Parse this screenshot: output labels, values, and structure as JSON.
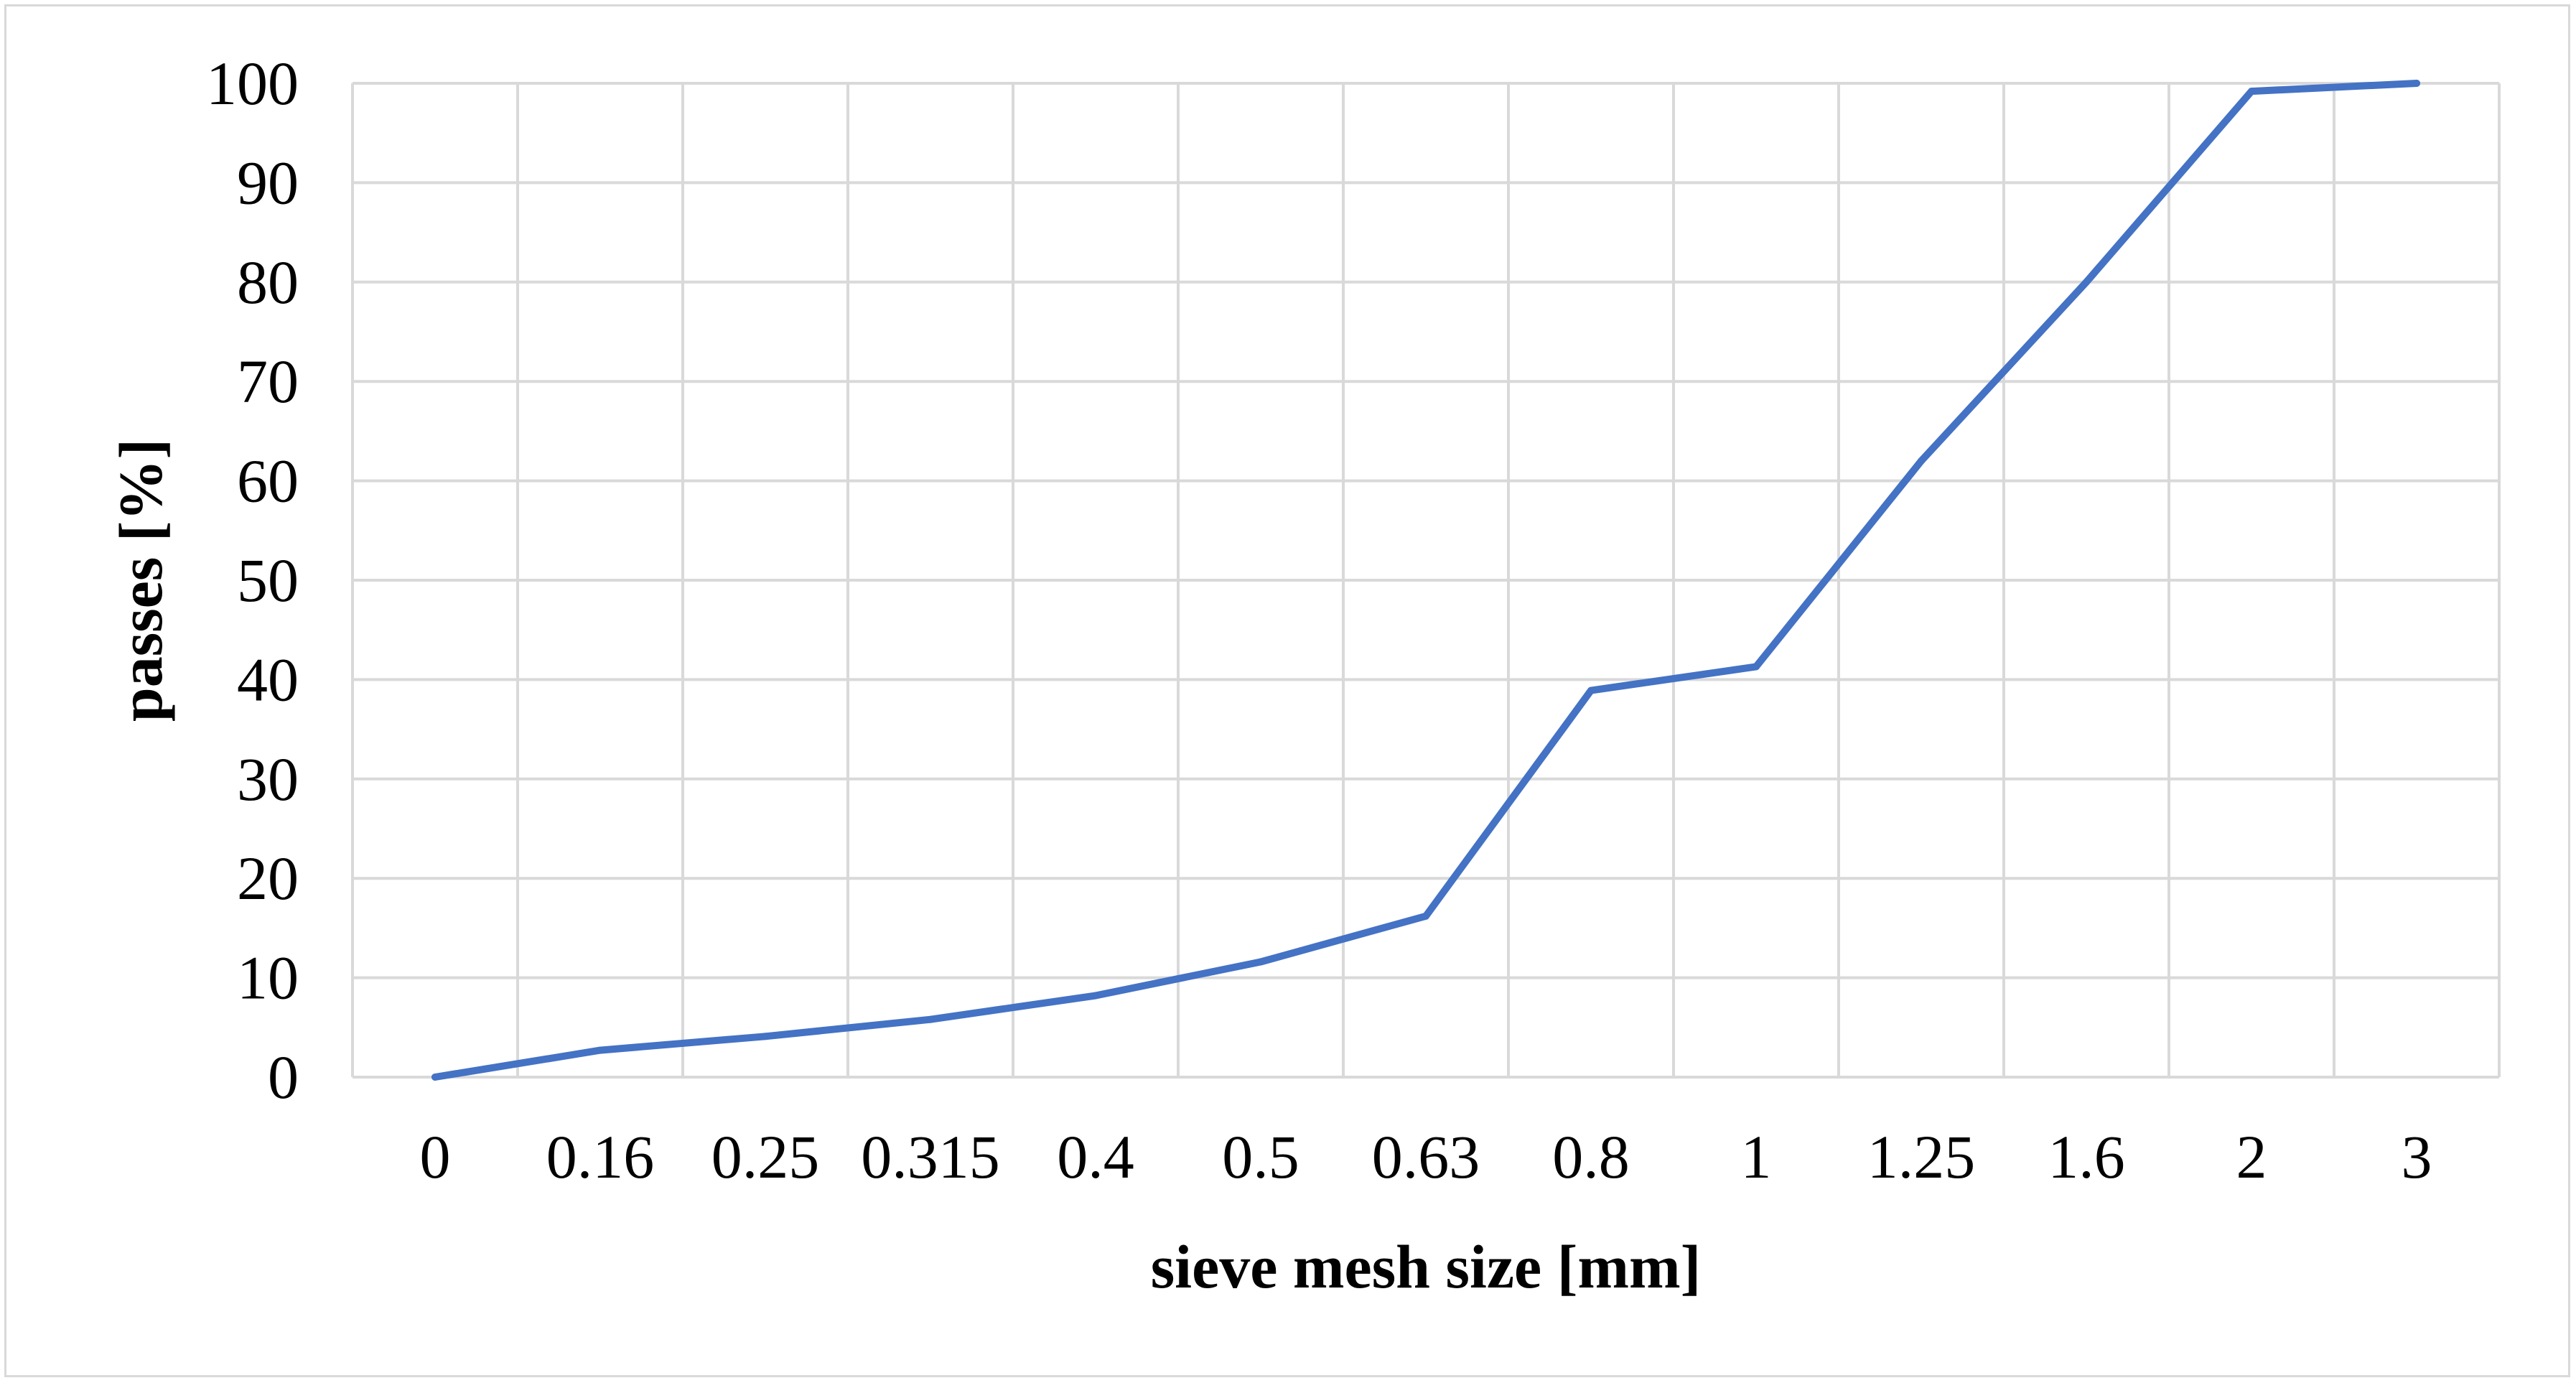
{
  "chart_data": {
    "type": "line",
    "title": "",
    "xlabel": "sieve mesh size [mm]",
    "ylabel": "passes [%]",
    "categories": [
      "0",
      "0.16",
      "0.25",
      "0.315",
      "0.4",
      "0.5",
      "0.63",
      "0.8",
      "1",
      "1.25",
      "1.6",
      "2",
      "3"
    ],
    "series": [
      {
        "values": [
          0,
          2.7,
          4.1,
          5.8,
          8.2,
          11.6,
          16.2,
          38.9,
          41.3,
          62.0,
          80.0,
          99.2,
          100
        ]
      }
    ],
    "ylim": [
      0,
      100
    ],
    "yticks": [
      "0",
      "10",
      "20",
      "30",
      "40",
      "50",
      "60",
      "70",
      "80",
      "90",
      "100"
    ],
    "grid": true,
    "legend": "none",
    "colors": {
      "line": "#4472c4",
      "grid": "#d9d9d9"
    }
  }
}
